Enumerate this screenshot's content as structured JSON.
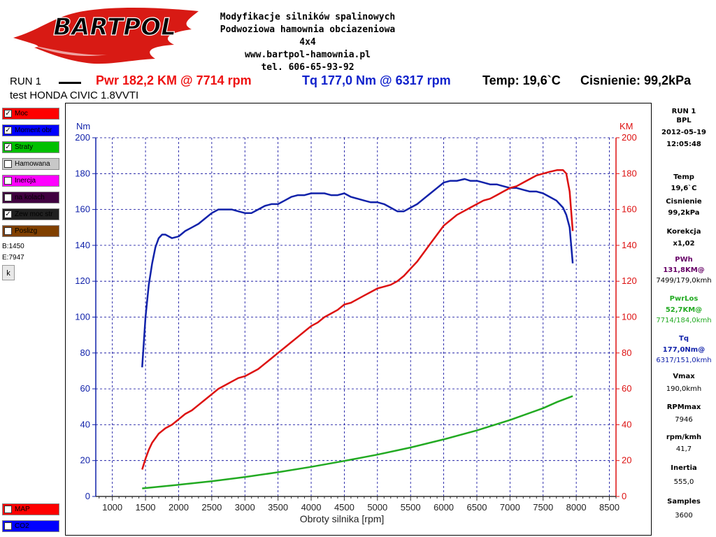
{
  "header": {
    "company_lines": [
      "Modyfikacje silników spalinowych",
      "Podwoziowa hamownia obciazeniowa 4x4",
      "www.bartpol-hamownia.pl",
      "tel. 606-65-93-92"
    ],
    "logo_text": "BARTPOL",
    "run_label": "RUN 1",
    "power_text": "Pwr  182,2 KM @ 7714 rpm",
    "torque_text": "Tq 177,0 Nm @ 6317 rpm",
    "temp_text": "Temp: 19,6`C",
    "pressure_text": "Cisnienie: 99,2kPa",
    "test_name": "test HONDA CIVIC 1.8VVTI"
  },
  "legend": {
    "items": [
      {
        "label": "Moc",
        "checked": true,
        "color": "#ff0000"
      },
      {
        "label": "Moment obr",
        "checked": true,
        "color": "#0000ff"
      },
      {
        "label": "Straty",
        "checked": true,
        "color": "#00c000"
      },
      {
        "label": "Hamowana",
        "checked": false,
        "color": "#c8c8c8"
      },
      {
        "label": "Inercja",
        "checked": false,
        "color": "#ff00ff"
      },
      {
        "label": "na kolach",
        "checked": false,
        "color": "#400040"
      },
      {
        "label": "Zew moc str",
        "checked": true,
        "color": "#202020"
      },
      {
        "label": "Poslizg",
        "checked": false,
        "color": "#804000"
      }
    ],
    "bottom_items": [
      {
        "label": "MAP",
        "checked": false,
        "color": "#ff0000"
      },
      {
        "label": "CO2",
        "checked": false,
        "color": "#0000ff"
      }
    ],
    "b_value": "B:1450",
    "e_value": "E:7947",
    "k_button": "k"
  },
  "right_panel": {
    "run": "RUN 1",
    "bpl": "BPL",
    "date": "2012-05-19",
    "time": "12:05:48",
    "temp_label": "Temp",
    "temp_value": "19,6`C",
    "cisn_label": "Cisnienie",
    "cisn_value": "99,2kPa",
    "korekcja_label": "Korekcja",
    "korekcja_value": "x1,02",
    "pwh_label": "PWh",
    "pwh_value1": "131,8KM@",
    "pwh_value2": "7499/179,0kmh",
    "pwrlos_label": "PwrLos",
    "pwrlos_value1": "52,7KM@",
    "pwrlos_value2": "7714/184,0kmh",
    "tq_label": "Tq",
    "tq_value1": "177,0Nm@",
    "tq_value2": "6317/151,0kmh",
    "vmax_label": "Vmax",
    "vmax_value": "190,0kmh",
    "rpmmax_label": "RPMmax",
    "rpmmax_value": "7946",
    "rpmkmh_label": "rpm/kmh",
    "rpmkmh_value": "41,7",
    "inertia_label": "Inertia",
    "inertia_value": "555,0",
    "samples_label": "Samples",
    "samples_value": "3600"
  },
  "colors": {
    "power": "#dd1111",
    "torque": "#1122aa",
    "losses": "#22aa22",
    "pwr_text": "#ee1111",
    "tq_text": "#1122cc",
    "pwh_text": "#660066",
    "pwrlos_text": "#22aa22",
    "tq_panel_text": "#1122aa"
  },
  "chart_data": {
    "type": "line",
    "xlabel": "Obroty silnika [rpm]",
    "ylabel_left": "Nm",
    "ylabel_right": "KM",
    "xlim": [
      750,
      8600
    ],
    "ylim": [
      0,
      200
    ],
    "x_ticks": [
      1000,
      1500,
      2000,
      2500,
      3000,
      3500,
      4000,
      4500,
      5000,
      5500,
      6000,
      6500,
      7000,
      7500,
      8000,
      8500
    ],
    "y_ticks": [
      0,
      20,
      40,
      60,
      80,
      100,
      120,
      140,
      160,
      180,
      200
    ],
    "grid": true,
    "series": [
      {
        "color": "#1122aa",
        "axis": "left",
        "x": [
          1450,
          1500,
          1550,
          1600,
          1650,
          1700,
          1750,
          1800,
          1900,
          2000,
          2100,
          2200,
          2300,
          2400,
          2500,
          2600,
          2700,
          2800,
          2900,
          3000,
          3100,
          3200,
          3300,
          3400,
          3500,
          3600,
          3700,
          3800,
          3900,
          4000,
          4100,
          4200,
          4300,
          4400,
          4500,
          4600,
          4700,
          4800,
          4900,
          5000,
          5100,
          5200,
          5300,
          5400,
          5500,
          5600,
          5700,
          5800,
          5900,
          6000,
          6100,
          6200,
          6317,
          6400,
          6500,
          6600,
          6700,
          6800,
          6900,
          7000,
          7100,
          7200,
          7300,
          7400,
          7500,
          7600,
          7700,
          7800,
          7850,
          7900,
          7947
        ],
        "values": [
          72,
          100,
          118,
          130,
          139,
          144,
          146,
          146,
          144,
          145,
          148,
          150,
          152,
          155,
          158,
          160,
          160,
          160,
          159,
          158,
          158,
          160,
          162,
          163,
          163,
          165,
          167,
          168,
          168,
          169,
          169,
          169,
          168,
          168,
          169,
          167,
          166,
          165,
          164,
          164,
          163,
          161,
          159,
          159,
          161,
          163,
          166,
          169,
          172,
          175,
          176,
          176,
          177,
          176,
          176,
          175,
          174,
          174,
          173,
          172,
          172,
          171,
          170,
          170,
          169,
          167,
          165,
          161,
          157,
          150,
          130
        ]
      },
      {
        "color": "#dd1111",
        "axis": "right",
        "x": [
          1450,
          1500,
          1550,
          1600,
          1700,
          1800,
          1900,
          2000,
          2100,
          2200,
          2300,
          2400,
          2500,
          2600,
          2700,
          2800,
          2900,
          3000,
          3100,
          3200,
          3300,
          3400,
          3500,
          3600,
          3700,
          3800,
          3900,
          4000,
          4100,
          4200,
          4300,
          4400,
          4500,
          4600,
          4700,
          4800,
          4900,
          5000,
          5100,
          5200,
          5300,
          5400,
          5500,
          5600,
          5700,
          5800,
          5900,
          6000,
          6100,
          6200,
          6300,
          6400,
          6500,
          6600,
          6700,
          6800,
          6900,
          7000,
          7100,
          7200,
          7300,
          7400,
          7500,
          7600,
          7714,
          7800,
          7850,
          7900,
          7947
        ],
        "values": [
          15,
          21,
          26,
          30,
          35,
          38,
          40,
          43,
          46,
          48,
          51,
          54,
          57,
          60,
          62,
          64,
          66,
          67,
          69,
          71,
          74,
          77,
          80,
          83,
          86,
          89,
          92,
          95,
          97,
          100,
          102,
          104,
          107,
          108,
          110,
          112,
          114,
          116,
          117,
          118,
          120,
          123,
          127,
          131,
          136,
          141,
          146,
          151,
          154,
          157,
          159,
          161,
          163,
          165,
          166,
          168,
          170,
          172,
          173,
          175,
          177,
          179,
          180,
          181,
          182,
          182,
          180,
          170,
          148
        ]
      },
      {
        "color": "#22aa22",
        "axis": "right",
        "x": [
          1450,
          2000,
          2500,
          3000,
          3500,
          4000,
          4500,
          5000,
          5500,
          6000,
          6500,
          7000,
          7500,
          7714,
          7947
        ],
        "values": [
          4.5,
          6.5,
          8.5,
          10.8,
          13.5,
          16.5,
          19.8,
          23.3,
          27.3,
          31.8,
          36.8,
          42.6,
          49.2,
          52.7,
          56
        ]
      }
    ]
  }
}
